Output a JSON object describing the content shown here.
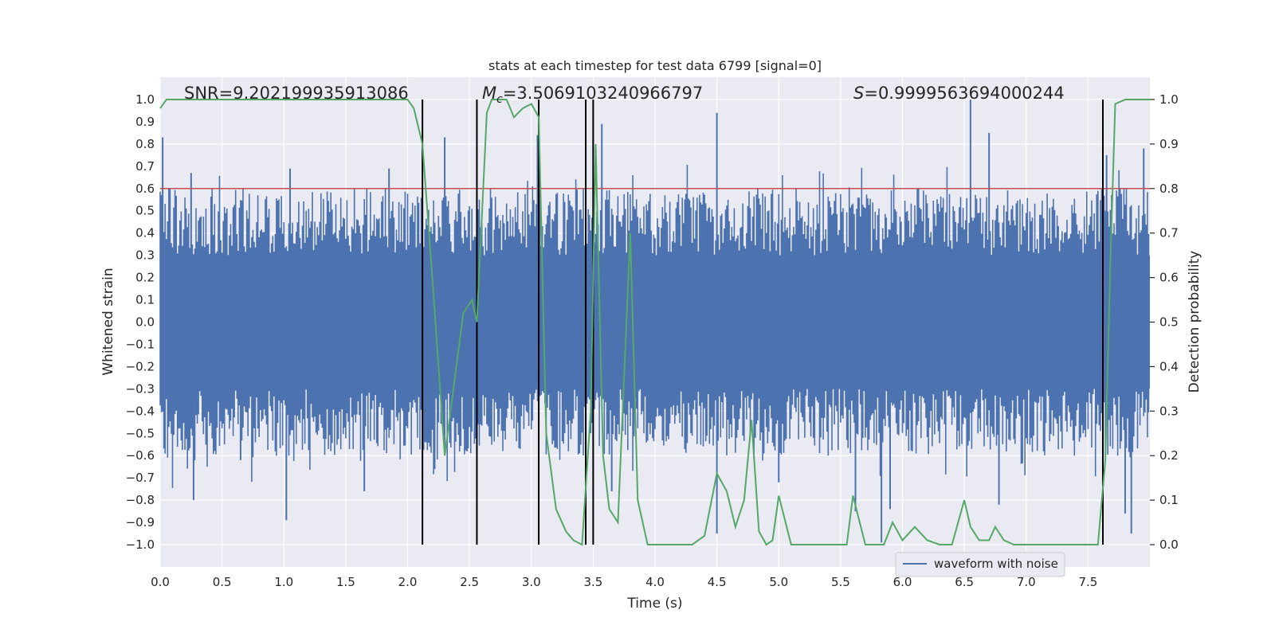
{
  "chart_data": {
    "type": "line",
    "title": "stats at each timestep for test data 6799 [signal=0]",
    "xlabel": "Time (s)",
    "ylabel": "Whitened strain",
    "y2label": "Detection probability",
    "xlim": [
      0.0,
      8.0
    ],
    "ylim": [
      -1.1,
      1.1
    ],
    "y2lim": [
      -0.05,
      1.05
    ],
    "x_ticks": [
      "0.0",
      "0.5",
      "1.0",
      "1.5",
      "2.0",
      "2.5",
      "3.0",
      "3.5",
      "4.0",
      "4.5",
      "5.0",
      "5.5",
      "6.0",
      "6.5",
      "7.0",
      "7.5"
    ],
    "y_ticks": [
      "1.0",
      "0.9",
      "0.8",
      "0.7",
      "0.6",
      "0.5",
      "0.4",
      "0.3",
      "0.2",
      "0.1",
      "0.0",
      "−0.1",
      "−0.2",
      "−0.3",
      "−0.4",
      "−0.5",
      "−0.6",
      "−0.7",
      "−0.8",
      "−0.9",
      "−1.0"
    ],
    "y2_ticks": [
      "1.0",
      "0.9",
      "0.8",
      "0.7",
      "0.6",
      "0.5",
      "0.4",
      "0.3",
      "0.2",
      "0.1",
      "0.0"
    ],
    "annotations": {
      "snr": "SNR=9.202199935913086",
      "mc_symbol": "M",
      "mc_sub": "c",
      "mc_value": "=3.5069103240966797",
      "s_symbol": "S",
      "s_value": "=0.9999563694000244"
    },
    "threshold": {
      "y": 0.8,
      "color": "#c44e52"
    },
    "vertical_lines_x": [
      2.12,
      2.56,
      3.06,
      3.44,
      3.5,
      7.62
    ],
    "waveform": {
      "name": "waveform with noise",
      "color": "#4c72b0",
      "n_samples": 800,
      "baseline_amplitude": 0.3,
      "spikes": [
        {
          "x": 0.02,
          "y": 0.83
        },
        {
          "x": 0.25,
          "y": 0.67
        },
        {
          "x": 0.27,
          "y": -0.8
        },
        {
          "x": 0.65,
          "y": -0.62
        },
        {
          "x": 1.02,
          "y": -0.89
        },
        {
          "x": 1.05,
          "y": 0.69
        },
        {
          "x": 1.65,
          "y": -0.76
        },
        {
          "x": 1.85,
          "y": 0.69
        },
        {
          "x": 2.3,
          "y": 0.83
        },
        {
          "x": 2.48,
          "y": -0.58
        },
        {
          "x": 3.05,
          "y": 0.84
        },
        {
          "x": 3.5,
          "y": 0.82
        },
        {
          "x": 3.57,
          "y": 0.89
        },
        {
          "x": 3.65,
          "y": -0.76
        },
        {
          "x": 4.5,
          "y": 0.94
        },
        {
          "x": 4.5,
          "y": -0.95
        },
        {
          "x": 5.0,
          "y": -0.72
        },
        {
          "x": 5.62,
          "y": -0.85
        },
        {
          "x": 5.83,
          "y": -0.99
        },
        {
          "x": 5.9,
          "y": -0.84
        },
        {
          "x": 6.55,
          "y": 1.0
        },
        {
          "x": 6.7,
          "y": 0.85
        },
        {
          "x": 6.78,
          "y": -0.82
        },
        {
          "x": 7.65,
          "y": 0.75
        },
        {
          "x": 7.8,
          "y": -0.86
        },
        {
          "x": 7.85,
          "y": -0.95
        },
        {
          "x": 7.95,
          "y": 0.78
        }
      ]
    },
    "detection_probability": {
      "color": "#55a868",
      "x": [
        0.0,
        0.05,
        0.1,
        0.5,
        1.0,
        1.5,
        1.9,
        2.0,
        2.05,
        2.12,
        2.2,
        2.3,
        2.45,
        2.52,
        2.56,
        2.64,
        2.68,
        2.73,
        2.8,
        2.86,
        2.93,
        3.0,
        3.06,
        3.12,
        3.2,
        3.28,
        3.34,
        3.41,
        3.48,
        3.52,
        3.58,
        3.63,
        3.7,
        3.8,
        3.86,
        3.94,
        4.1,
        4.3,
        4.4,
        4.5,
        4.58,
        4.65,
        4.72,
        4.78,
        4.84,
        4.9,
        4.95,
        5.0,
        5.1,
        5.3,
        5.4,
        5.55,
        5.6,
        5.7,
        5.8,
        5.85,
        5.92,
        6.0,
        6.1,
        6.2,
        6.3,
        6.4,
        6.5,
        6.55,
        6.62,
        6.7,
        6.75,
        6.82,
        6.9,
        7.0,
        7.2,
        7.4,
        7.58,
        7.64,
        7.68,
        7.72,
        7.8,
        8.0
      ],
      "y": [
        0.98,
        1.0,
        1.0,
        1.0,
        1.0,
        1.0,
        1.0,
        1.0,
        0.98,
        0.9,
        0.6,
        0.2,
        0.52,
        0.55,
        0.5,
        0.97,
        1.0,
        1.0,
        1.0,
        0.96,
        0.98,
        0.99,
        0.96,
        0.25,
        0.08,
        0.03,
        0.01,
        0.0,
        0.3,
        0.9,
        0.2,
        0.08,
        0.05,
        0.7,
        0.1,
        0.0,
        0.0,
        0.0,
        0.02,
        0.16,
        0.12,
        0.04,
        0.1,
        0.28,
        0.03,
        0.0,
        0.01,
        0.11,
        0.0,
        0.0,
        0.0,
        0.0,
        0.11,
        0.0,
        0.0,
        0.0,
        0.05,
        0.01,
        0.04,
        0.01,
        0.0,
        0.0,
        0.1,
        0.04,
        0.01,
        0.01,
        0.04,
        0.01,
        0.0,
        0.0,
        0.0,
        0.0,
        0.0,
        0.19,
        0.63,
        0.99,
        1.0,
        1.0
      ]
    },
    "legend": {
      "location": "lower-right",
      "entries": [
        "waveform with noise"
      ]
    }
  }
}
